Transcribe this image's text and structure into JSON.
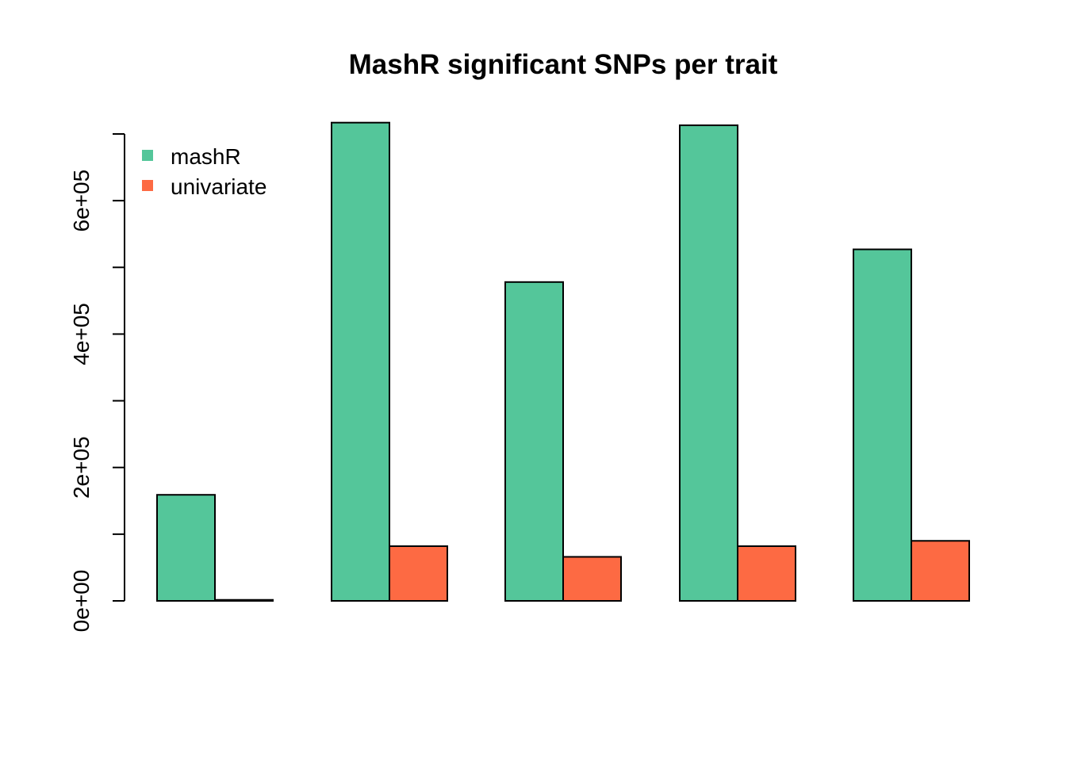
{
  "chart_data": {
    "type": "bar",
    "title": "MashR significant SNPs per trait",
    "xlabel": "",
    "ylabel": "",
    "categories": [
      "",
      "",
      "",
      "",
      ""
    ],
    "series": [
      {
        "name": "mashR",
        "color": "#54C69A",
        "values": [
          159000,
          717000,
          478000,
          713000,
          527000
        ]
      },
      {
        "name": "univariate",
        "color": "#FD6A43",
        "values": [
          1500,
          82000,
          66000,
          82000,
          90000
        ]
      }
    ],
    "ylim": [
      0,
      700000
    ],
    "y_ticks": [
      0,
      200000,
      400000,
      600000
    ],
    "y_tick_labels": [
      "0e+00",
      "2e+05",
      "4e+05",
      "6e+05"
    ],
    "y_minor_ticks": [
      100000,
      300000,
      500000,
      700000
    ],
    "grid": false,
    "legend_position": "top-left"
  }
}
